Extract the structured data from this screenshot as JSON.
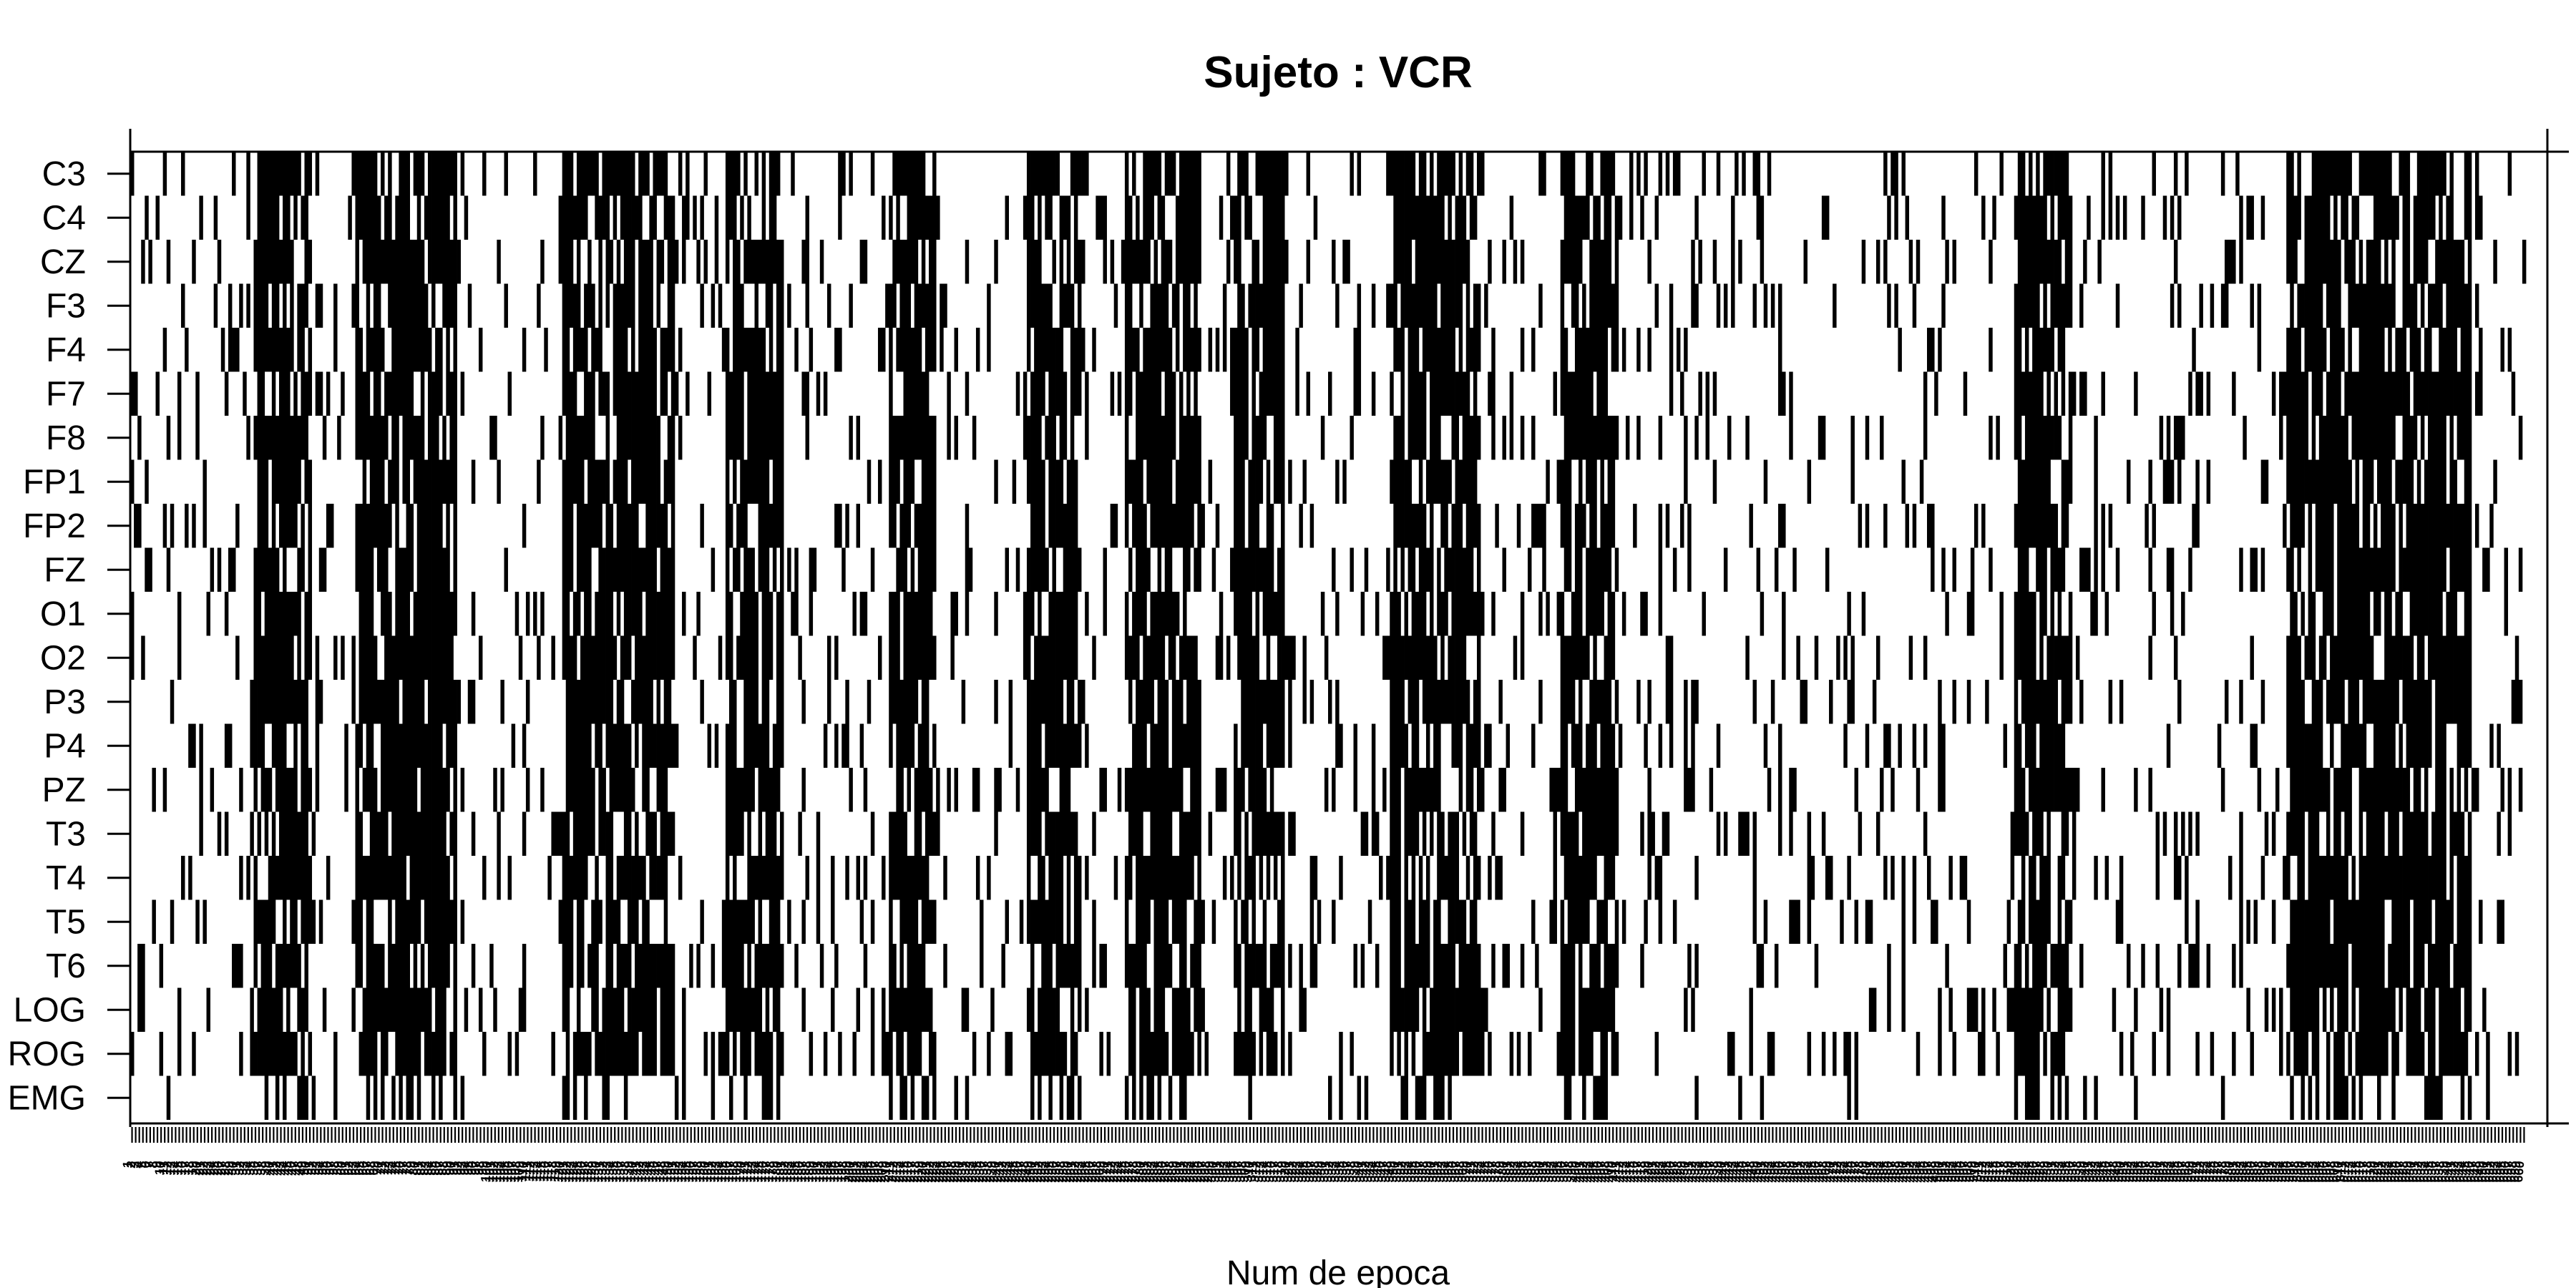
{
  "chart_data": {
    "type": "heatmap",
    "title": "Sujeto : VCR",
    "xlabel": "Num de epoca",
    "ylabel": "",
    "colors": {
      "on": "#000000",
      "off": "#ffffff"
    },
    "value_legend": "binary: 1 = black cell, 0 = white cell (values reconstructed approximately)",
    "x_range": [
      1,
      660
    ],
    "grid": false,
    "legend": "none",
    "channels": [
      "C3",
      "C4",
      "CZ",
      "F3",
      "F4",
      "F7",
      "F8",
      "FP1",
      "FP2",
      "FZ",
      "O1",
      "O2",
      "P3",
      "P4",
      "PZ",
      "T3",
      "T4",
      "T5",
      "T6",
      "LOG",
      "ROG",
      "EMG"
    ],
    "dense_epoch_ranges": [
      [
        35,
        50
      ],
      [
        63,
        90
      ],
      [
        120,
        150
      ],
      [
        165,
        180
      ],
      [
        210,
        222
      ],
      [
        248,
        262
      ],
      [
        275,
        295
      ],
      [
        305,
        318
      ],
      [
        348,
        372
      ],
      [
        395,
        410
      ],
      [
        520,
        535
      ],
      [
        595,
        645
      ]
    ],
    "sparse_density": 0.14
  }
}
